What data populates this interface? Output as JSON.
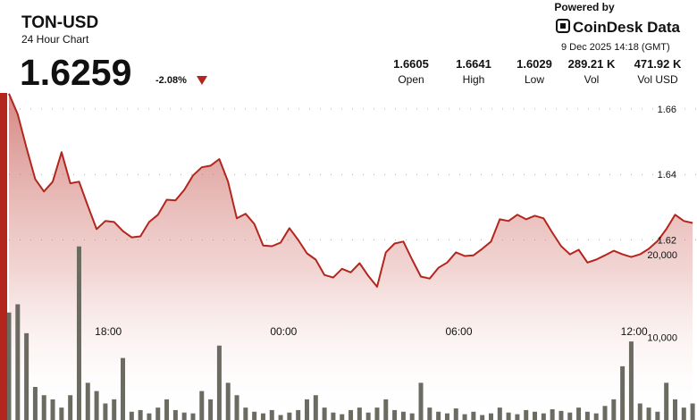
{
  "chart_data": {
    "type": "line",
    "title": "TON-USD",
    "subtitle": "24 Hour Chart",
    "price": "1.6259",
    "change": "-2.08%",
    "stats": [
      {
        "value": "1.6605",
        "label": "Open"
      },
      {
        "value": "1.6641",
        "label": "High"
      },
      {
        "value": "1.6029",
        "label": "Low"
      },
      {
        "value": "289.21 K",
        "label": "Vol"
      },
      {
        "value": "471.92 K",
        "label": "Vol USD"
      }
    ],
    "powered_by": "Powered by",
    "brand": "CoinDesk Data",
    "timestamp": "9 Dec 2025 14:18 (GMT)",
    "x": [
      0.3,
      0.6,
      0.9,
      1.2,
      1.5,
      1.8,
      2.1,
      2.4,
      2.7,
      3.0,
      3.3,
      3.6,
      3.9,
      4.2,
      4.5,
      4.8,
      5.1,
      5.4,
      5.7,
      6.0,
      6.3,
      6.6,
      6.9,
      7.2,
      7.5,
      7.8,
      8.1,
      8.4,
      8.7,
      9.0,
      9.3,
      9.6,
      9.9,
      10.2,
      10.5,
      10.8,
      11.1,
      11.4,
      11.7,
      12.0,
      12.3,
      12.6,
      12.9,
      13.2,
      13.5,
      13.8,
      14.1,
      14.4,
      14.7,
      15.0,
      15.3,
      15.6,
      15.9,
      16.2,
      16.5,
      16.8,
      17.1,
      17.4,
      17.7,
      18.0,
      18.3,
      18.6,
      18.9,
      19.2,
      19.5,
      19.8,
      20.1,
      20.4,
      20.7,
      21.0,
      21.3,
      21.6,
      21.9,
      22.2,
      22.5,
      22.8,
      23.1,
      23.4,
      23.7
    ],
    "series": [
      {
        "color": "#b3261e",
        "values": [
          1.6647,
          1.6584,
          1.6482,
          1.6386,
          1.6348,
          1.6378,
          1.6468,
          1.6373,
          1.6378,
          1.6304,
          1.6233,
          1.6258,
          1.6255,
          1.6227,
          1.6208,
          1.6211,
          1.6255,
          1.6277,
          1.6323,
          1.6321,
          1.6353,
          1.6397,
          1.6422,
          1.6427,
          1.6447,
          1.6378,
          1.6266,
          1.628,
          1.6249,
          1.6183,
          1.6181,
          1.6192,
          1.6236,
          1.62,
          1.6159,
          1.614,
          1.6093,
          1.6085,
          1.6112,
          1.6101,
          1.6129,
          1.609,
          1.6057,
          1.6162,
          1.6189,
          1.6195,
          1.614,
          1.6088,
          1.6082,
          1.6115,
          1.6131,
          1.6162,
          1.6151,
          1.6153,
          1.6173,
          1.6195,
          1.6263,
          1.6258,
          1.6277,
          1.6263,
          1.6274,
          1.6266,
          1.6222,
          1.6181,
          1.6156,
          1.617,
          1.6131,
          1.614,
          1.6153,
          1.6167,
          1.6156,
          1.6148,
          1.6156,
          1.6173,
          1.6197,
          1.6233,
          1.6277,
          1.6258,
          1.6252
        ]
      },
      {
        "type": "bar",
        "axis": "y2",
        "color": "#6b6b62",
        "values": [
          13000,
          14000,
          10500,
          4000,
          3000,
          2500,
          1500,
          3000,
          21000,
          4500,
          3500,
          2000,
          2500,
          7500,
          1000,
          1200,
          800,
          1500,
          2500,
          1200,
          900,
          800,
          3500,
          2500,
          9000,
          4500,
          3000,
          1500,
          1000,
          800,
          1200,
          600,
          900,
          1200,
          2500,
          3000,
          1500,
          900,
          700,
          1200,
          1500,
          900,
          1500,
          2500,
          1200,
          1000,
          800,
          4500,
          1500,
          1000,
          800,
          1400,
          700,
          1000,
          600,
          800,
          1500,
          900,
          700,
          1200,
          1000,
          800,
          1300,
          1100,
          900,
          1500,
          1000,
          800,
          1700,
          2500,
          6500,
          9500,
          2000,
          1500,
          1000,
          4500,
          2500,
          1500,
          2000
        ]
      }
    ],
    "xlim": [
      0.3,
      23.85
    ],
    "xticks": [
      {
        "value": 3.7,
        "label": "18:00"
      },
      {
        "value": 9.7,
        "label": "00:00"
      },
      {
        "value": 15.7,
        "label": "06:00"
      },
      {
        "value": 21.7,
        "label": "12:00"
      }
    ],
    "ylim": [
      1.565,
      1.666
    ],
    "yticks": [
      1.66,
      1.64,
      1.62
    ],
    "y2lim": [
      0,
      40000
    ],
    "y2ticks": [
      {
        "value": 20000,
        "label": "20,000"
      },
      {
        "value": 10000,
        "label": "10,000"
      }
    ],
    "grid": true
  }
}
